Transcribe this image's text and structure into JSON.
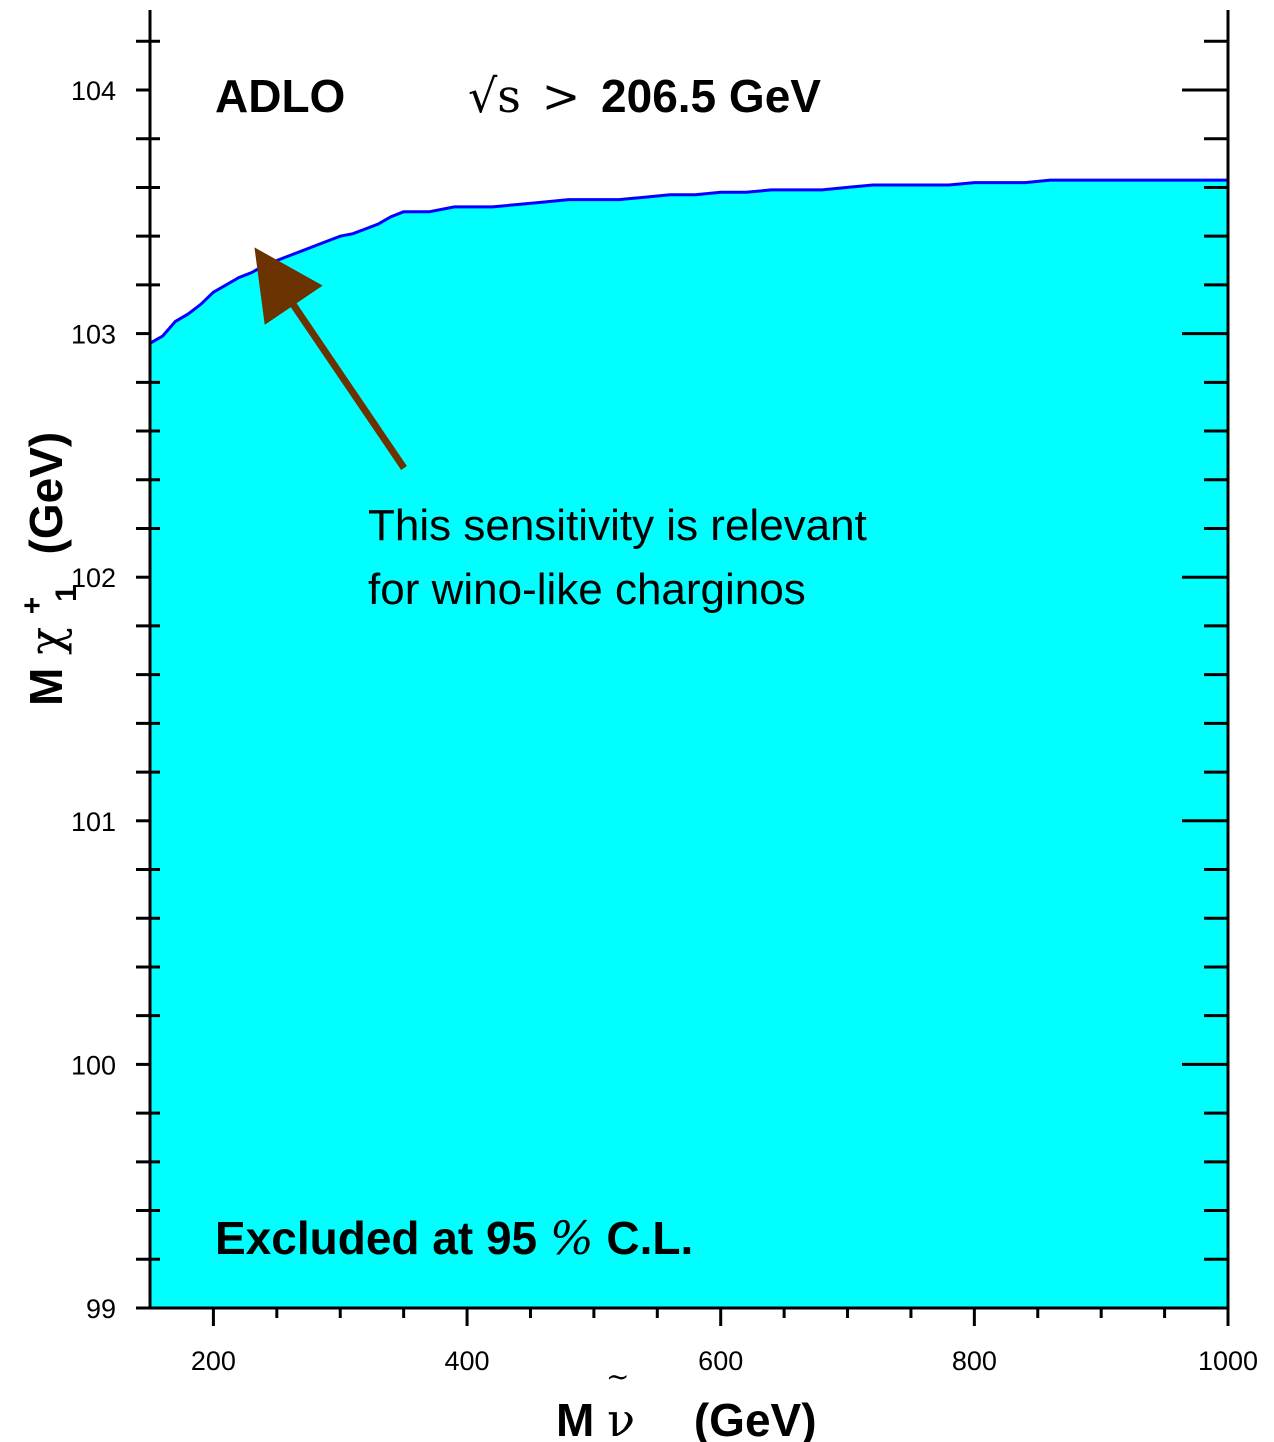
{
  "chart_data": {
    "type": "area",
    "title": {
      "experiment": "ADLO",
      "energy_prefix": "√s",
      "energy_relation": ">",
      "energy_value": "206.5 GeV"
    },
    "xlabel": {
      "mass_symbol": "M",
      "particle": "ν",
      "particle_accent": "~",
      "unit": "(GeV)"
    },
    "ylabel": {
      "mass_symbol": "M",
      "particle": "χ",
      "superscript": "+",
      "subscript": "1",
      "unit": "(GeV)"
    },
    "xlim": [
      150,
      1000
    ],
    "ylim": [
      99,
      104.3
    ],
    "x_ticks": [
      200,
      400,
      600,
      800,
      1000
    ],
    "y_ticks": [
      99,
      100,
      101,
      102,
      103,
      104
    ],
    "x_tick_labels": [
      "200",
      "400",
      "600",
      "800",
      "1000"
    ],
    "y_tick_labels": [
      "99",
      "100",
      "101",
      "102",
      "103",
      "104"
    ],
    "fill_color": "#00ffff",
    "line_color": "#0000ff",
    "arrow_color": "#6b3300",
    "region_label": {
      "text_prefix": "Excluded at 95",
      "percent_sign": "%",
      "text_suffix": " C.L."
    },
    "annotation": {
      "line1": "This sensitivity is relevant",
      "line2": "for wino-like charginos",
      "arrow_tip": {
        "x": 240,
        "y": 103.3
      }
    },
    "series": [
      {
        "x": [
          150,
          160,
          170,
          180,
          190,
          200,
          210,
          220,
          230,
          240,
          250,
          260,
          270,
          280,
          290,
          300,
          310,
          320,
          330,
          340,
          350,
          360,
          370,
          380,
          390,
          400,
          420,
          440,
          460,
          480,
          500,
          520,
          540,
          560,
          580,
          600,
          620,
          640,
          660,
          680,
          700,
          720,
          740,
          760,
          780,
          800,
          820,
          840,
          860,
          880,
          900,
          920,
          940,
          960,
          980,
          1000
        ],
        "y": [
          102.96,
          102.99,
          103.05,
          103.08,
          103.12,
          103.17,
          103.2,
          103.23,
          103.25,
          103.28,
          103.3,
          103.32,
          103.34,
          103.36,
          103.38,
          103.4,
          103.41,
          103.43,
          103.45,
          103.48,
          103.5,
          103.5,
          103.5,
          103.51,
          103.52,
          103.52,
          103.52,
          103.53,
          103.54,
          103.55,
          103.55,
          103.55,
          103.56,
          103.57,
          103.57,
          103.58,
          103.58,
          103.59,
          103.59,
          103.59,
          103.6,
          103.61,
          103.61,
          103.61,
          103.61,
          103.62,
          103.62,
          103.62,
          103.63,
          103.63,
          103.63,
          103.63,
          103.63,
          103.63,
          103.63,
          103.63
        ]
      }
    ]
  }
}
